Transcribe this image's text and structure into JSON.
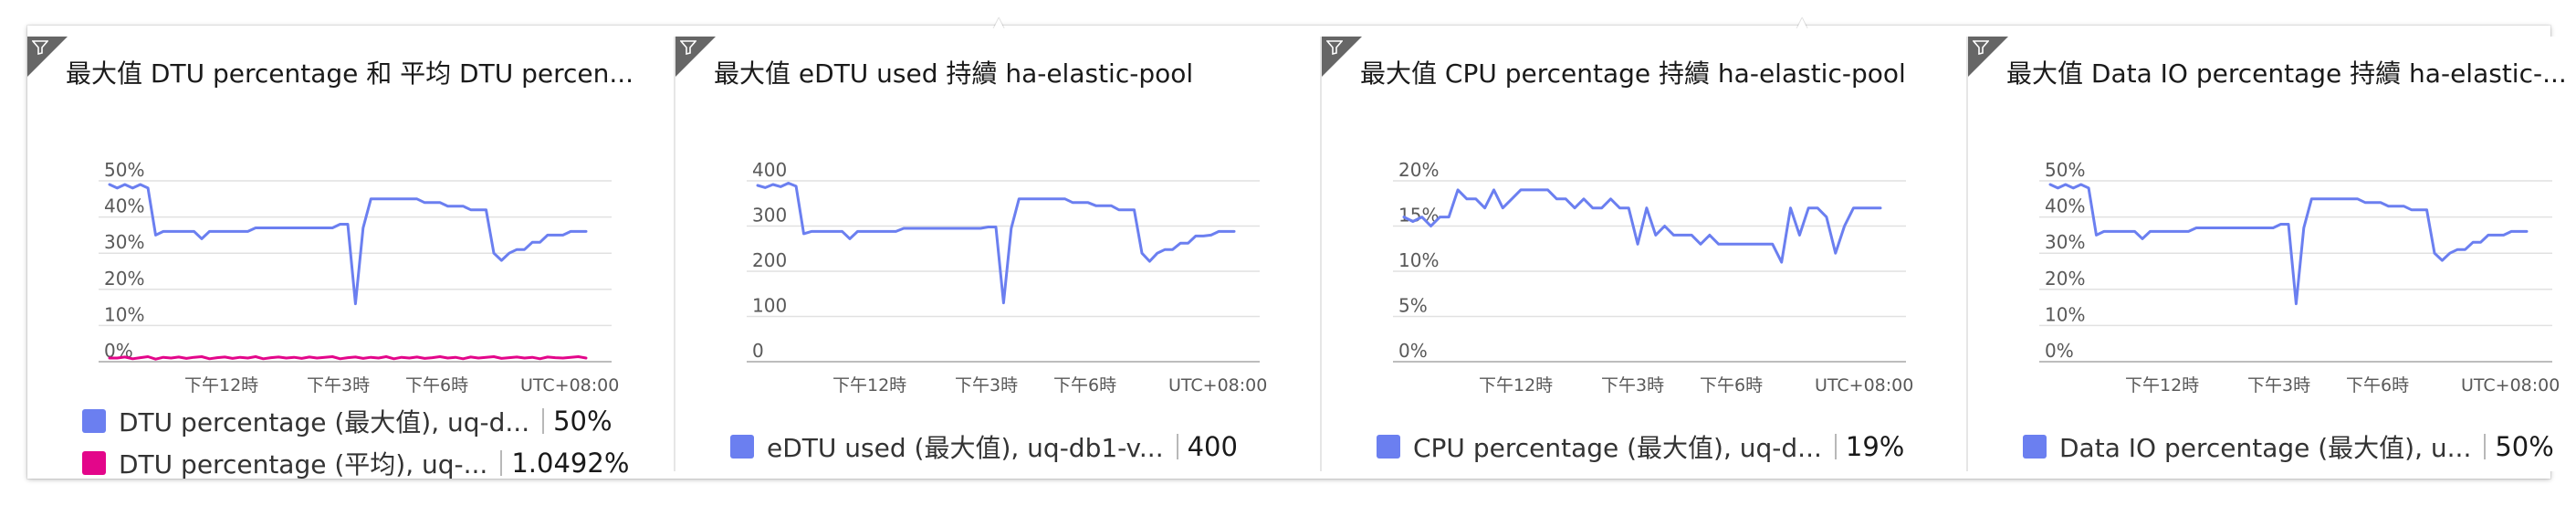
{
  "colors": {
    "blue": "#6b7ff0",
    "magenta": "#e3068a",
    "grid": "#e1e1e1",
    "axis": "#bdbdbd",
    "text_muted": "#595959"
  },
  "icons": {
    "filter": "filter-icon"
  },
  "x_axis": {
    "ticks": [
      "下午12時",
      "下午3時",
      "下午6時"
    ],
    "timezone": "UTC+08:00"
  },
  "tiles": [
    {
      "title": "最大值 DTU percentage 和 平均 DTU percen...",
      "legend": [
        {
          "label": "DTU percentage (最大值), uq-d...",
          "value": "50%",
          "color": "#6b7ff0"
        },
        {
          "label": "DTU percentage (平均), uq-...",
          "value": "1.0492%",
          "color": "#e3068a"
        }
      ]
    },
    {
      "title": "最大值 eDTU used 持續 ha-elastic-pool",
      "legend": [
        {
          "label": "eDTU used (最大值), uq-db1-v...",
          "value": "400",
          "color": "#6b7ff0"
        }
      ]
    },
    {
      "title": "最大值 CPU percentage 持續 ha-elastic-pool",
      "legend": [
        {
          "label": "CPU percentage (最大值), uq-d...",
          "value": "19%",
          "color": "#6b7ff0"
        }
      ]
    },
    {
      "title": "最大值 Data IO percentage 持續 ha-elastic-...",
      "legend": [
        {
          "label": "Data IO percentage (最大值), u...",
          "value": "50%",
          "color": "#6b7ff0"
        }
      ]
    }
  ],
  "chart_data": [
    {
      "type": "line",
      "y_ticks": [
        "50%",
        "40%",
        "30%",
        "20%",
        "10%",
        "0%"
      ],
      "ylim": [
        0,
        50
      ],
      "x_ticks": [
        "下午12時",
        "下午3時",
        "下午6時",
        "UTC+08:00"
      ],
      "series": [
        {
          "name": "DTU percentage (最大值), uq-d...",
          "color": "#6b7ff0",
          "values": [
            49,
            48,
            49,
            48,
            49,
            48,
            35,
            36,
            36,
            36,
            36,
            36,
            34,
            36,
            36,
            36,
            36,
            36,
            36,
            37,
            37,
            37,
            37,
            37,
            37,
            37,
            37,
            37,
            37,
            37,
            38,
            38,
            16,
            37,
            45,
            45,
            45,
            45,
            45,
            45,
            45,
            44,
            44,
            44,
            43,
            43,
            43,
            42,
            42,
            42,
            30,
            28,
            30,
            31,
            31,
            33,
            33,
            35,
            35,
            35,
            36,
            36,
            36
          ]
        },
        {
          "name": "DTU percentage (平均), uq-...",
          "color": "#e3068a",
          "values": [
            1,
            1,
            1.3,
            0.8,
            1.1,
            1.4,
            0.7,
            1.2,
            1,
            1.3,
            0.9,
            1.2,
            1.4,
            0.8,
            1.1,
            1.3,
            0.9,
            1.2,
            1,
            1.4,
            0.8,
            1.1,
            1.3,
            1,
            1.2,
            0.9,
            1.3,
            1,
            1.2,
            1.4,
            0.8,
            1.1,
            1.3,
            0.9,
            1.2,
            1,
            1.4,
            0.8,
            1.2,
            1,
            1.3,
            0.9,
            1.1,
            1.4,
            1,
            1.2,
            0.8,
            1.3,
            1,
            1.2,
            1.4,
            0.9,
            1.1,
            1.3,
            1,
            1.2,
            0.8,
            1.3,
            1.1,
            1,
            1.2,
            1.4,
            1
          ]
        }
      ]
    },
    {
      "type": "line",
      "y_ticks": [
        "400",
        "300",
        "200",
        "100",
        "0"
      ],
      "ylim": [
        0,
        400
      ],
      "x_ticks": [
        "下午12時",
        "下午3時",
        "下午6時",
        "UTC+08:00"
      ],
      "series": [
        {
          "name": "eDTU used (最大值), uq-db1-v...",
          "color": "#6b7ff0",
          "values": [
            390,
            385,
            392,
            387,
            395,
            388,
            283,
            288,
            288,
            288,
            288,
            288,
            272,
            288,
            288,
            288,
            288,
            288,
            288,
            295,
            295,
            295,
            295,
            295,
            295,
            295,
            295,
            295,
            295,
            295,
            298,
            298,
            130,
            295,
            360,
            360,
            360,
            360,
            360,
            360,
            360,
            352,
            352,
            352,
            345,
            345,
            345,
            336,
            336,
            336,
            240,
            222,
            240,
            248,
            248,
            262,
            262,
            278,
            278,
            280,
            288,
            288,
            288
          ]
        }
      ]
    },
    {
      "type": "line",
      "y_ticks": [
        "20%",
        "15%",
        "10%",
        "5%",
        "0%"
      ],
      "ylim": [
        0,
        20
      ],
      "x_ticks": [
        "下午12時",
        "下午3時",
        "下午6時",
        "UTC+08:00"
      ],
      "series": [
        {
          "name": "CPU percentage (最大值), uq-d...",
          "color": "#6b7ff0",
          "values": [
            16,
            15.5,
            16,
            15,
            16,
            16,
            19,
            18,
            18,
            17,
            19,
            17,
            18,
            19,
            19,
            19,
            19,
            18,
            18,
            17,
            18,
            17,
            17,
            18,
            17,
            17,
            13,
            17,
            14,
            15,
            14,
            14,
            14,
            13,
            14,
            13,
            13,
            13,
            13,
            13,
            13,
            13,
            11,
            17,
            14,
            17,
            17,
            16,
            12,
            15,
            17,
            17,
            17,
            17
          ]
        }
      ]
    },
    {
      "type": "line",
      "y_ticks": [
        "50%",
        "40%",
        "30%",
        "20%",
        "10%",
        "0%"
      ],
      "ylim": [
        0,
        50
      ],
      "x_ticks": [
        "下午12時",
        "下午3時",
        "下午6時",
        "UTC+08:00"
      ],
      "series": [
        {
          "name": "Data IO percentage (最大值), u...",
          "color": "#6b7ff0",
          "values": [
            49,
            48,
            49,
            48,
            49,
            48,
            35,
            36,
            36,
            36,
            36,
            36,
            34,
            36,
            36,
            36,
            36,
            36,
            36,
            37,
            37,
            37,
            37,
            37,
            37,
            37,
            37,
            37,
            37,
            37,
            38,
            38,
            16,
            37,
            45,
            45,
            45,
            45,
            45,
            45,
            45,
            44,
            44,
            44,
            43,
            43,
            43,
            42,
            42,
            42,
            30,
            28,
            30,
            31,
            31,
            33,
            33,
            35,
            35,
            35,
            36,
            36,
            36
          ]
        }
      ]
    }
  ]
}
